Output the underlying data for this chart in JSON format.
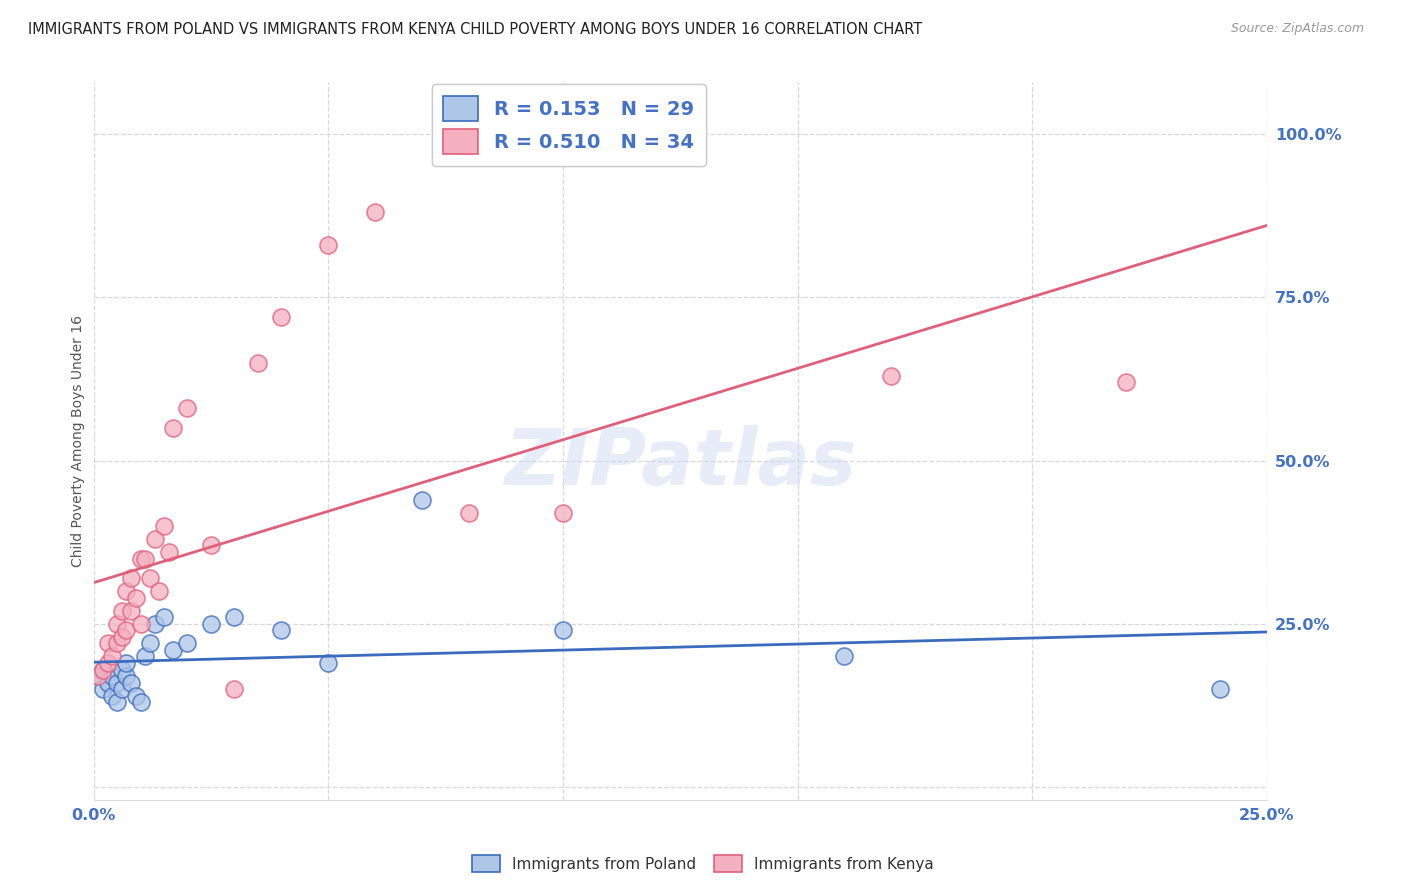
{
  "title": "IMMIGRANTS FROM POLAND VS IMMIGRANTS FROM KENYA CHILD POVERTY AMONG BOYS UNDER 16 CORRELATION CHART",
  "source": "Source: ZipAtlas.com",
  "ylabel": "Child Poverty Among Boys Under 16",
  "xlim": [
    0.0,
    0.25
  ],
  "ylim": [
    -0.02,
    1.08
  ],
  "yticks": [
    0.0,
    0.25,
    0.5,
    0.75,
    1.0
  ],
  "ytick_labels": [
    "",
    "25.0%",
    "50.0%",
    "75.0%",
    "100.0%"
  ],
  "xticks": [
    0.0,
    0.05,
    0.1,
    0.15,
    0.2,
    0.25
  ],
  "xtick_labels": [
    "0.0%",
    "",
    "",
    "",
    "",
    "25.0%"
  ],
  "poland_color": "#aec6e8",
  "kenya_color": "#f4afc0",
  "poland_line_color": "#3a6bbf",
  "kenya_line_color": "#e0607a",
  "legend_label_poland": "Immigrants from Poland",
  "legend_label_kenya": "Immigrants from Kenya",
  "poland_R": "0.153",
  "poland_N": "29",
  "kenya_R": "0.510",
  "kenya_N": "34",
  "watermark": "ZIPatlas",
  "poland_x": [
    0.001,
    0.002,
    0.002,
    0.003,
    0.004,
    0.004,
    0.005,
    0.005,
    0.006,
    0.006,
    0.007,
    0.007,
    0.008,
    0.009,
    0.01,
    0.011,
    0.012,
    0.013,
    0.015,
    0.017,
    0.02,
    0.025,
    0.03,
    0.04,
    0.05,
    0.07,
    0.1,
    0.16,
    0.24
  ],
  "poland_y": [
    0.17,
    0.15,
    0.18,
    0.16,
    0.17,
    0.14,
    0.16,
    0.13,
    0.18,
    0.15,
    0.17,
    0.19,
    0.16,
    0.14,
    0.13,
    0.2,
    0.22,
    0.25,
    0.26,
    0.21,
    0.22,
    0.25,
    0.26,
    0.24,
    0.19,
    0.44,
    0.24,
    0.2,
    0.15
  ],
  "kenya_x": [
    0.001,
    0.002,
    0.003,
    0.003,
    0.004,
    0.005,
    0.005,
    0.006,
    0.006,
    0.007,
    0.007,
    0.008,
    0.008,
    0.009,
    0.01,
    0.01,
    0.011,
    0.012,
    0.013,
    0.014,
    0.015,
    0.016,
    0.017,
    0.02,
    0.025,
    0.03,
    0.035,
    0.04,
    0.05,
    0.06,
    0.08,
    0.1,
    0.17,
    0.22
  ],
  "kenya_y": [
    0.17,
    0.18,
    0.19,
    0.22,
    0.2,
    0.22,
    0.25,
    0.23,
    0.27,
    0.24,
    0.3,
    0.27,
    0.32,
    0.29,
    0.35,
    0.25,
    0.35,
    0.32,
    0.38,
    0.3,
    0.4,
    0.36,
    0.55,
    0.58,
    0.37,
    0.15,
    0.65,
    0.72,
    0.83,
    0.88,
    0.42,
    0.42,
    0.63,
    0.62
  ],
  "background_color": "#ffffff",
  "grid_color": "#d8d8d8",
  "axis_text_color": "#4472c4",
  "title_color": "#222222"
}
